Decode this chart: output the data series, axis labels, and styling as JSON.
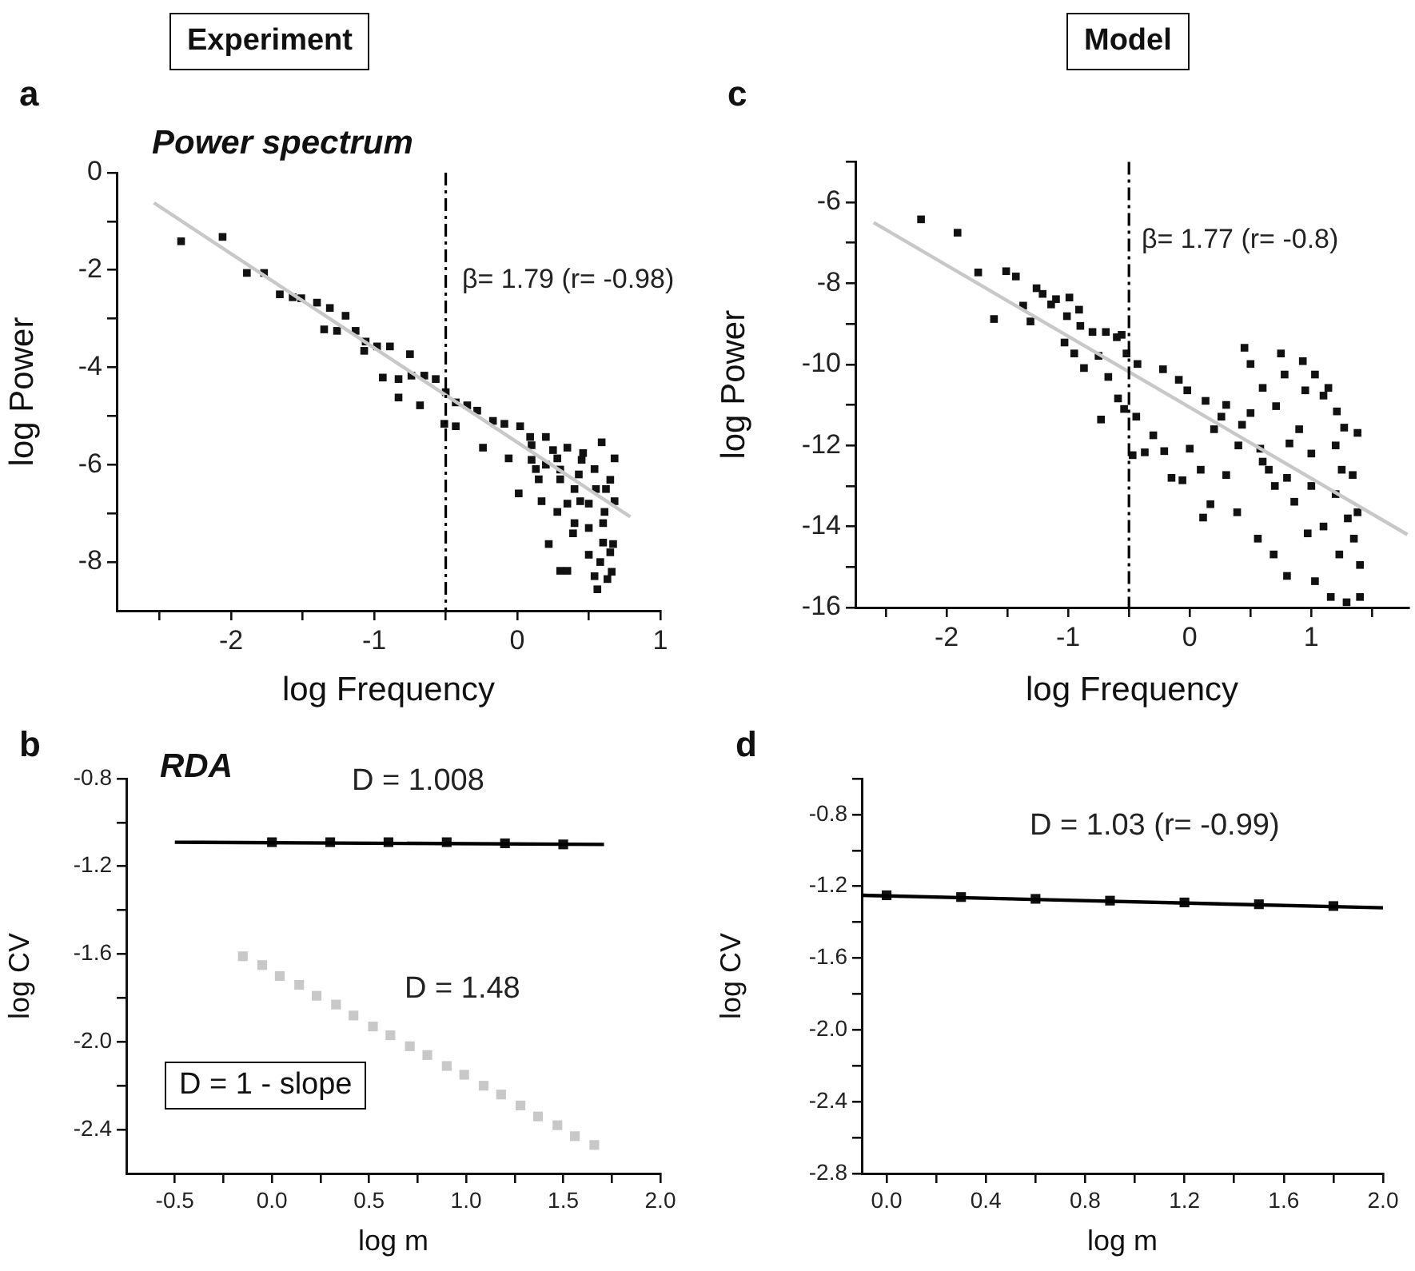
{
  "chart_data": [
    {
      "type": "scatter",
      "title": "Power spectrum",
      "xlabel": "log Frequency",
      "ylabel": "log Power",
      "marker": "square",
      "xlim": [
        -2.8,
        1
      ],
      "ylim": [
        -9,
        0
      ],
      "xticks": [
        {
          "value": -2.5,
          "label": null
        },
        -2,
        {
          "value": -1.5,
          "label": null
        },
        -1,
        {
          "value": -0.5,
          "label": null
        },
        0,
        {
          "value": 0.5,
          "label": null
        },
        1
      ],
      "yticks": [
        0,
        {
          "value": -1,
          "label": null
        },
        -2,
        {
          "value": -3,
          "label": null
        },
        -4,
        {
          "value": -5,
          "label": null
        },
        -6,
        {
          "value": -7,
          "label": null
        },
        -8
      ],
      "ref_lines": [
        {
          "axis": "x",
          "value": -0.5,
          "color": "#000000",
          "line_style": "dashed"
        }
      ],
      "annotations": [
        "Experiment",
        "a",
        "β= 1.79 (r= -0.98)"
      ],
      "series": [
        {
          "type": "line",
          "marker": "none",
          "color": "#c8c8c8",
          "x": [
            -2.54,
            0.79
          ],
          "values": [
            -0.62,
            -7.07
          ]
        },
        {
          "color": "#111111",
          "x": [
            -2.35,
            -2.06,
            -1.89,
            -1.77,
            -1.66,
            -1.57,
            -1.51,
            -1.4,
            -1.31,
            -1.2,
            -1.35,
            -1.26,
            -1.13,
            -1.06,
            -1.07,
            -0.98,
            -0.89,
            -0.94,
            -0.83,
            -0.83,
            -0.75,
            -0.74,
            -0.68,
            -0.65,
            -0.57,
            -0.5,
            -0.51,
            -0.43,
            -0.43,
            -0.35,
            -0.28,
            -0.24,
            -0.17,
            -0.09,
            -0.06,
            0.02,
            0.01,
            0.09,
            0.13,
            0.17,
            0.2,
            0.22,
            0.28,
            0.28,
            0.3,
            0.35,
            0.35,
            0.39,
            0.43,
            0.44,
            0.46,
            0.5,
            0.54,
            0.54,
            0.56,
            0.59,
            0.61,
            0.63,
            0.65,
            0.67,
            0.68,
            0.68,
            0.1,
            0.2,
            0.3,
            0.4,
            0.5,
            0.6,
            0.65,
            0.1,
            0.25,
            0.45,
            0.55,
            0.62,
            0.35,
            0.5,
            0.6,
            0.4,
            0.3,
            0.15,
            0.58,
            0.66
          ],
          "values": [
            -1.41,
            -1.32,
            -2.06,
            -2.06,
            -2.5,
            -2.56,
            -2.58,
            -2.67,
            -2.78,
            -2.94,
            -3.22,
            -3.25,
            -3.25,
            -3.47,
            -3.66,
            -3.57,
            -3.57,
            -4.21,
            -4.24,
            -4.62,
            -3.73,
            -4.17,
            -4.78,
            -4.17,
            -4.24,
            -4.51,
            -5.16,
            -4.72,
            -5.21,
            -4.78,
            -4.89,
            -5.65,
            -5.1,
            -5.16,
            -5.87,
            -5.21,
            -6.59,
            -5.43,
            -6.09,
            -6.75,
            -5.43,
            -7.63,
            -5.87,
            -6.97,
            -8.18,
            -8.18,
            -5.65,
            -7.41,
            -6.2,
            -6.75,
            -5.76,
            -7.85,
            -6.09,
            -8.29,
            -8.56,
            -5.54,
            -6.97,
            -8.35,
            -6.31,
            -7.63,
            -5.87,
            -6.75,
            -5.6,
            -6.0,
            -6.3,
            -6.5,
            -6.8,
            -7.2,
            -7.8,
            -5.9,
            -5.7,
            -5.9,
            -6.5,
            -6.5,
            -6.8,
            -7.3,
            -7.6,
            -7.2,
            -6.1,
            -6.3,
            -8.0,
            -8.2
          ]
        }
      ]
    },
    {
      "type": "scatter",
      "xlabel": "log Frequency",
      "ylabel": "log Power",
      "marker": "square",
      "xlim": [
        -2.75,
        1.8
      ],
      "ylim": [
        -16,
        -5
      ],
      "xticks": [
        {
          "value": -2.5,
          "label": null
        },
        -2,
        {
          "value": -1.5,
          "label": null
        },
        -1,
        {
          "value": -0.5,
          "label": null
        },
        0,
        {
          "value": 0.5,
          "label": null
        },
        1,
        {
          "value": 1.5,
          "label": null
        }
      ],
      "yticks": [
        {
          "value": -5,
          "label": null
        },
        -6,
        {
          "value": -7,
          "label": null
        },
        -8,
        {
          "value": -9,
          "label": null
        },
        -10,
        {
          "value": -11,
          "label": null
        },
        -12,
        {
          "value": -13,
          "label": null
        },
        -14,
        {
          "value": -15,
          "label": null
        },
        -16
      ],
      "ref_lines": [
        {
          "axis": "x",
          "value": -0.5,
          "color": "#000000",
          "line_style": "dashed"
        }
      ],
      "annotations": [
        "Model",
        "c",
        "β= 1.77 (r= -0.8)"
      ],
      "series": [
        {
          "type": "line",
          "marker": "none",
          "color": "#c8c8c8",
          "x": [
            -2.6,
            1.79
          ],
          "values": [
            -6.5,
            -14.2
          ]
        },
        {
          "color": "#111111",
          "x": [
            -2.21,
            -1.91,
            -1.74,
            -1.61,
            -1.51,
            -1.43,
            -1.37,
            -1.31,
            -1.26,
            -1.21,
            -1.14,
            -1.1,
            -0.99,
            -1.01,
            -1.03,
            -0.91,
            -0.9,
            -0.95,
            -0.87,
            -0.8,
            -0.75,
            -0.73,
            -0.69,
            -0.67,
            -0.6,
            -0.59,
            -0.56,
            -0.54,
            -0.52,
            -0.47,
            -0.43,
            -0.44,
            -0.37,
            -0.3,
            -0.22,
            -0.21,
            -0.15,
            -0.09,
            -0.06,
            -0.02,
            0.0,
            0.09,
            0.11,
            0.13,
            0.17,
            0.26,
            0.3,
            0.39,
            0.43,
            0.45,
            0.5,
            0.56,
            0.58,
            0.6,
            0.65,
            0.69,
            0.71,
            0.75,
            0.78,
            0.8,
            0.82,
            0.86,
            0.93,
            0.95,
            0.97,
            1.03,
            1.03,
            1.1,
            1.14,
            1.16,
            1.21,
            1.23,
            1.27,
            1.29,
            1.34,
            1.38,
            1.38,
            1.4,
            1.4,
            0.2,
            0.4,
            0.6,
            0.8,
            1.0,
            1.2,
            1.3,
            1.0,
            1.2,
            0.5,
            0.9,
            1.1,
            0.7,
            0.3,
            1.35,
            1.25
          ],
          "values": [
            -6.42,
            -6.75,
            -7.73,
            -8.88,
            -7.7,
            -7.83,
            -8.55,
            -8.94,
            -8.12,
            -8.26,
            -8.52,
            -8.39,
            -8.35,
            -8.81,
            -9.46,
            -8.65,
            -9.05,
            -9.73,
            -10.09,
            -9.2,
            -9.79,
            -11.36,
            -9.2,
            -10.31,
            -9.33,
            -10.84,
            -9.27,
            -11.1,
            -9.73,
            -12.24,
            -9.99,
            -11.29,
            -12.17,
            -11.75,
            -10.12,
            -12.14,
            -12.8,
            -10.38,
            -12.86,
            -10.64,
            -12.08,
            -12.6,
            -13.78,
            -10.9,
            -13.45,
            -11.29,
            -12.73,
            -13.65,
            -11.49,
            -9.59,
            -9.99,
            -14.3,
            -12.08,
            -10.58,
            -12.6,
            -14.69,
            -11.03,
            -9.73,
            -10.25,
            -15.22,
            -11.95,
            -13.39,
            -9.92,
            -10.64,
            -14.17,
            -10.25,
            -15.35,
            -10.77,
            -10.58,
            -15.74,
            -11.16,
            -14.69,
            -11.56,
            -15.87,
            -12.73,
            -11.69,
            -13.65,
            -14.95,
            -15.74,
            -11.6,
            -12.0,
            -12.4,
            -12.8,
            -13.0,
            -13.2,
            -13.8,
            -12.2,
            -12.0,
            -11.2,
            -11.6,
            -14.0,
            -13.0,
            -11.0,
            -14.3,
            -12.6
          ]
        }
      ]
    },
    {
      "type": "scatter",
      "title": "RDA",
      "xlabel": "log m",
      "ylabel": "log CV",
      "marker": "square",
      "xlim": [
        -0.75,
        2.0
      ],
      "ylim": [
        -2.6,
        -0.8
      ],
      "xticks": [
        -0.5,
        {
          "value": -0.25,
          "label": null
        },
        {
          "value": 0,
          "label": "0.0"
        },
        {
          "value": 0.25,
          "label": null
        },
        0.5,
        {
          "value": 0.75,
          "label": null
        },
        {
          "value": 1,
          "label": "1.0"
        },
        {
          "value": 1.25,
          "label": null
        },
        1.5,
        {
          "value": 1.75,
          "label": null
        },
        {
          "value": 2,
          "label": "2.0"
        }
      ],
      "yticks": [
        -0.8,
        {
          "value": -1.0,
          "label": null
        },
        -1.2,
        {
          "value": -1.4,
          "label": null
        },
        -1.6,
        {
          "value": -1.8,
          "label": null
        },
        {
          "value": -2,
          "label": "-2.0"
        },
        {
          "value": -2.2,
          "label": null
        },
        -2.4
      ],
      "annotations": [
        "b",
        "D = 1 - slope",
        "D = 1.008",
        "D = 1.48"
      ],
      "series": [
        {
          "type": "line",
          "marker": "none",
          "color": "#000000",
          "x": [
            -0.5,
            1.71
          ],
          "values": [
            -1.09,
            -1.1
          ]
        },
        {
          "color": "#111111",
          "x": [
            0,
            0.3,
            0.6,
            0.9,
            1.2,
            1.5
          ],
          "values": [
            -1.09,
            -1.09,
            -1.09,
            -1.09,
            -1.095,
            -1.1
          ]
        },
        {
          "color": "#c8c8c8",
          "x": [
            -0.15,
            -0.05,
            0.04,
            0.14,
            0.23,
            0.33,
            0.42,
            0.52,
            0.61,
            0.71,
            0.8,
            0.9,
            0.99,
            1.09,
            1.18,
            1.28,
            1.37,
            1.47,
            1.56,
            1.66
          ],
          "values": [
            -1.61,
            -1.65,
            -1.7,
            -1.74,
            -1.79,
            -1.83,
            -1.88,
            -1.93,
            -1.97,
            -2.02,
            -2.06,
            -2.11,
            -2.15,
            -2.2,
            -2.24,
            -2.29,
            -2.34,
            -2.38,
            -2.43,
            -2.47
          ]
        }
      ]
    },
    {
      "type": "scatter",
      "xlabel": "log m",
      "ylabel": "log CV",
      "marker": "square",
      "xlim": [
        -0.1,
        2.0
      ],
      "ylim": [
        -2.8,
        -0.6
      ],
      "xticks": [
        {
          "value": 0,
          "label": "0.0"
        },
        {
          "value": 0.2,
          "label": null
        },
        0.4,
        {
          "value": 0.6,
          "label": null
        },
        0.8,
        {
          "value": 1.0,
          "label": null
        },
        1.2,
        {
          "value": 1.4,
          "label": null
        },
        1.6,
        {
          "value": 1.8,
          "label": null
        },
        {
          "value": 2,
          "label": "2.0"
        }
      ],
      "yticks": [
        {
          "value": -0.6,
          "label": null
        },
        -0.8,
        {
          "value": -1.0,
          "label": null
        },
        -1.2,
        {
          "value": -1.4,
          "label": null
        },
        -1.6,
        {
          "value": -1.8,
          "label": null
        },
        {
          "value": -2,
          "label": "-2.0"
        },
        {
          "value": -2.2,
          "label": null
        },
        -2.4,
        {
          "value": -2.6,
          "label": null
        },
        -2.8
      ],
      "annotations": [
        "d",
        "D = 1.03 (r= -0.99)"
      ],
      "series": [
        {
          "type": "line",
          "marker": "none",
          "color": "#000000",
          "x": [
            -0.1,
            2.0
          ],
          "values": [
            -1.25,
            -1.32
          ]
        },
        {
          "color": "#111111",
          "x": [
            0,
            0.3,
            0.6,
            0.9,
            1.2,
            1.5,
            1.8
          ],
          "values": [
            -1.25,
            -1.26,
            -1.27,
            -1.28,
            -1.29,
            -1.3,
            -1.31
          ]
        }
      ]
    }
  ]
}
